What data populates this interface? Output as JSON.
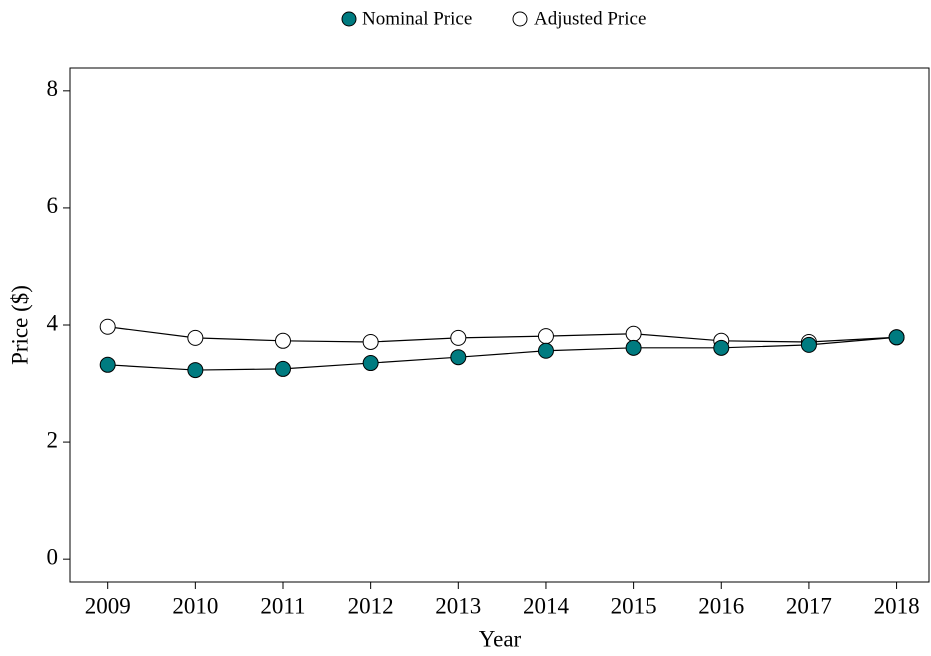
{
  "chart_data": {
    "type": "line",
    "x_label": "Year",
    "y_label": "Price ($)",
    "x": [
      2009,
      2010,
      2011,
      2012,
      2013,
      2014,
      2015,
      2016,
      2017,
      2018
    ],
    "series": [
      {
        "name": "Nominal Price",
        "color": "#007b80",
        "values": [
          3.32,
          3.23,
          3.25,
          3.35,
          3.45,
          3.56,
          3.61,
          3.61,
          3.66,
          3.79
        ]
      },
      {
        "name": "Adjusted Price",
        "color": "#ffffff",
        "values": [
          3.97,
          3.78,
          3.73,
          3.71,
          3.78,
          3.81,
          3.85,
          3.73,
          3.71,
          3.79
        ]
      }
    ],
    "xlim": [
      2008.57,
      2018.37
    ],
    "ylim": [
      -0.39,
      8.39
    ],
    "xticks": [
      2009,
      2010,
      2011,
      2012,
      2013,
      2014,
      2015,
      2016,
      2017,
      2018
    ],
    "yticks": [
      0,
      2,
      4,
      6,
      8
    ],
    "legend": "top"
  }
}
